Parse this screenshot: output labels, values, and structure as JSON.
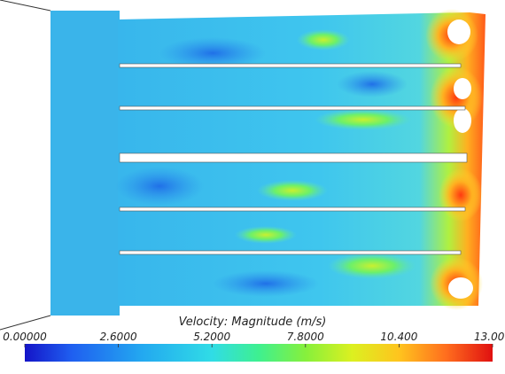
{
  "legend": {
    "title": "Velocity: Magnitude (m/s)",
    "ticks": [
      {
        "value": 0,
        "label": "0.00000"
      },
      {
        "value": 2.6,
        "label": "2.6000"
      },
      {
        "value": 5.2,
        "label": "5.2000"
      },
      {
        "value": 7.8,
        "label": "7.8000"
      },
      {
        "value": 10.4,
        "label": "10.400"
      },
      {
        "value": 13,
        "label": "13.000"
      }
    ]
  }
}
